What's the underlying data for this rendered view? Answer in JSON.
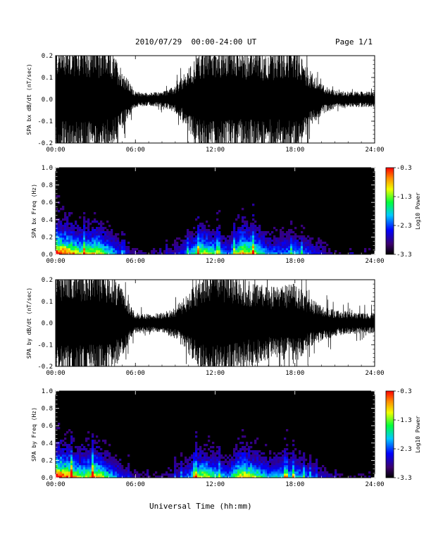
{
  "header": {
    "title": "2010/07/29  00:00-24:00 UT",
    "page": "Page 1/1"
  },
  "footer": {
    "xlabel": "Universal Time (hh:mm)"
  },
  "chart_data": [
    {
      "type": "line",
      "ylabel": "SPA bx dB/dt (nT/sec)",
      "x_ticks": [
        "00:00",
        "06:00",
        "12:00",
        "18:00",
        "24:00"
      ],
      "y_ticks": [
        "-0.2",
        "-0.1",
        "0.0",
        "0.1",
        "0.2"
      ],
      "xlim": [
        0,
        24
      ],
      "ylim": [
        -0.2,
        0.2
      ],
      "envelope": {
        "x_hours": [
          0,
          1,
          2,
          3,
          4,
          5,
          5.5,
          6,
          7,
          8,
          9,
          10,
          11,
          12,
          13,
          14,
          15,
          16,
          17,
          18,
          19,
          20,
          21,
          22,
          23,
          24
        ],
        "amplitude": [
          0.22,
          0.22,
          0.22,
          0.22,
          0.2,
          0.12,
          0.07,
          0.03,
          0.025,
          0.03,
          0.05,
          0.12,
          0.2,
          0.22,
          0.21,
          0.2,
          0.2,
          0.18,
          0.2,
          0.22,
          0.12,
          0.06,
          0.035,
          0.03,
          0.03,
          0.03
        ]
      }
    },
    {
      "type": "heatmap",
      "ylabel": "SPA bx Freq (Hz)",
      "x_ticks": [
        "00:00",
        "06:00",
        "12:00",
        "18:00",
        "24:00"
      ],
      "y_ticks": [
        "0.0",
        "0.2",
        "0.4",
        "0.6",
        "0.8",
        "1.0"
      ],
      "xlim": [
        0,
        24
      ],
      "ylim": [
        0,
        1.0
      ],
      "colorbar": {
        "label": "Log10 Power",
        "ticks": [
          "-0.3",
          "-1.3",
          "-2.3",
          "-3.3"
        ],
        "range": [
          -3.3,
          -0.3
        ]
      },
      "activity": {
        "x_hours": [
          0,
          1,
          2,
          3,
          4,
          5,
          6,
          7,
          8,
          9,
          10,
          11,
          12,
          13,
          14,
          15,
          16,
          17,
          18,
          19,
          20,
          21,
          22,
          23,
          24
        ],
        "level": [
          1.0,
          0.85,
          0.6,
          0.75,
          0.5,
          0.25,
          0.15,
          0.1,
          0.12,
          0.2,
          0.35,
          0.7,
          0.5,
          0.3,
          0.8,
          0.65,
          0.35,
          0.35,
          0.4,
          0.3,
          0.2,
          0.12,
          0.1,
          0.08,
          0.08
        ]
      }
    },
    {
      "type": "line",
      "ylabel": "SPA by dB/dt (nT/sec)",
      "x_ticks": [
        "00:00",
        "06:00",
        "12:00",
        "18:00",
        "24:00"
      ],
      "y_ticks": [
        "-0.2",
        "-0.1",
        "0.0",
        "0.1",
        "0.2"
      ],
      "xlim": [
        0,
        24
      ],
      "ylim": [
        -0.2,
        0.2
      ],
      "envelope": {
        "x_hours": [
          0,
          1,
          2,
          3,
          4,
          5,
          5.5,
          6,
          7,
          8,
          9,
          10,
          11,
          12,
          13,
          14,
          15,
          16,
          17,
          18,
          19,
          20,
          21,
          22,
          23,
          24
        ],
        "amplitude": [
          0.22,
          0.22,
          0.22,
          0.22,
          0.2,
          0.14,
          0.08,
          0.04,
          0.035,
          0.04,
          0.06,
          0.12,
          0.2,
          0.22,
          0.2,
          0.18,
          0.16,
          0.14,
          0.14,
          0.16,
          0.1,
          0.07,
          0.05,
          0.045,
          0.04,
          0.04
        ]
      }
    },
    {
      "type": "heatmap",
      "ylabel": "SPA by Freq (Hz)",
      "x_ticks": [
        "00:00",
        "06:00",
        "12:00",
        "18:00",
        "24:00"
      ],
      "y_ticks": [
        "0.0",
        "0.2",
        "0.4",
        "0.6",
        "0.8",
        "1.0"
      ],
      "xlim": [
        0,
        24
      ],
      "ylim": [
        0,
        1.0
      ],
      "colorbar": {
        "label": "Log10 Power",
        "ticks": [
          "-0.3",
          "-1.3",
          "-2.3",
          "-3.3"
        ],
        "range": [
          -3.3,
          -0.3
        ]
      },
      "activity": {
        "x_hours": [
          0,
          1,
          2,
          3,
          4,
          5,
          6,
          7,
          8,
          9,
          10,
          11,
          12,
          13,
          14,
          15,
          16,
          17,
          18,
          19,
          20,
          21,
          22,
          23,
          24
        ],
        "level": [
          1.0,
          0.85,
          0.6,
          0.8,
          0.5,
          0.25,
          0.15,
          0.1,
          0.12,
          0.2,
          0.35,
          0.7,
          0.5,
          0.35,
          0.8,
          0.6,
          0.4,
          0.45,
          0.45,
          0.3,
          0.2,
          0.12,
          0.1,
          0.1,
          0.08
        ]
      }
    }
  ]
}
